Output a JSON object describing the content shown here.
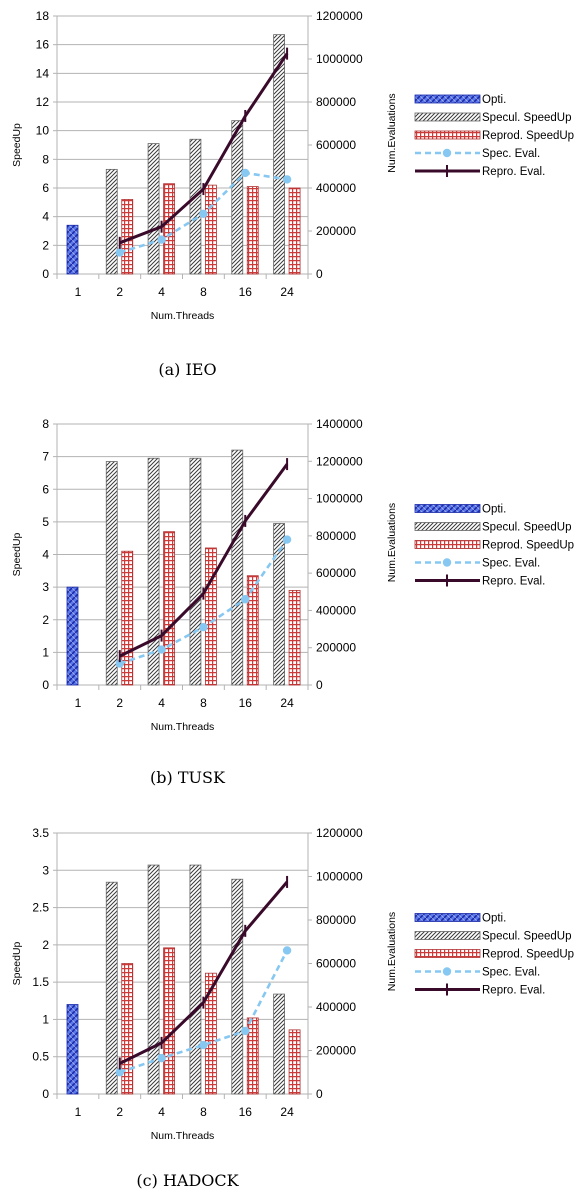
{
  "charts": [
    {
      "caption": "(a) IEO",
      "chart_data": {
        "type": "bar",
        "categories": [
          "1",
          "2",
          "4",
          "8",
          "16",
          "24"
        ],
        "xlabel": "Num.Threads",
        "ylabel": "SpeedUp",
        "y2label": "Num.Evaluations",
        "ylim": [
          0,
          18
        ],
        "yticks": [
          0,
          2,
          4,
          6,
          8,
          10,
          12,
          14,
          16,
          18
        ],
        "y2lim": [
          0,
          1200000
        ],
        "y2ticks": [
          0,
          200000,
          400000,
          600000,
          800000,
          1000000,
          1200000
        ],
        "legend_position": "right",
        "bars": [
          {
            "name": "Opti.",
            "values": [
              3.4,
              null,
              null,
              null,
              null,
              null
            ],
            "color": "#3a55d8",
            "pattern": "blue-hatch"
          },
          {
            "name": "Specul. SpeedUp",
            "values": [
              null,
              7.3,
              9.1,
              9.4,
              10.7,
              16.7
            ],
            "color": "#444444",
            "pattern": "diagonal"
          },
          {
            "name": "Reprod. SpeedUp",
            "values": [
              null,
              5.2,
              6.3,
              6.2,
              6.1,
              6.0
            ],
            "color": "#cc3a3a",
            "pattern": "grid"
          }
        ],
        "lines": [
          {
            "name": "Spec. Eval.",
            "axis": "right",
            "values": [
              null,
              100000,
              160000,
              280000,
              470000,
              440000
            ],
            "color": "#86c8f2",
            "style": "dashed"
          },
          {
            "name": "Repro. Eval.",
            "axis": "right",
            "values": [
              null,
              145000,
              220000,
              395000,
              735000,
              1025000
            ],
            "color": "#3a0a2a",
            "style": "solid"
          }
        ]
      }
    },
    {
      "caption": "(b) TUSK",
      "chart_data": {
        "type": "bar",
        "categories": [
          "1",
          "2",
          "4",
          "8",
          "16",
          "24"
        ],
        "xlabel": "Num.Threads",
        "ylabel": "SpeedUp",
        "y2label": "Num.Evaluations",
        "ylim": [
          0,
          8
        ],
        "yticks": [
          0,
          1,
          2,
          3,
          4,
          5,
          6,
          7,
          8
        ],
        "y2lim": [
          0,
          1400000
        ],
        "y2ticks": [
          0,
          200000,
          400000,
          600000,
          800000,
          1000000,
          1200000,
          1400000
        ],
        "legend_position": "right",
        "bars": [
          {
            "name": "Opti.",
            "values": [
              3.0,
              null,
              null,
              null,
              null,
              null
            ],
            "color": "#3a55d8",
            "pattern": "blue-hatch"
          },
          {
            "name": "Specul. SpeedUp",
            "values": [
              null,
              6.85,
              6.95,
              6.95,
              7.2,
              4.95
            ],
            "color": "#444444",
            "pattern": "diagonal"
          },
          {
            "name": "Reprod. SpeedUp",
            "values": [
              null,
              4.1,
              4.7,
              4.2,
              3.35,
              2.9
            ],
            "color": "#cc3a3a",
            "pattern": "grid"
          }
        ],
        "lines": [
          {
            "name": "Spec. Eval.",
            "axis": "right",
            "values": [
              null,
              115000,
              190000,
              310000,
              460000,
              780000
            ],
            "color": "#86c8f2",
            "style": "dashed"
          },
          {
            "name": "Repro. Eval.",
            "axis": "right",
            "values": [
              null,
              155000,
              265000,
              490000,
              880000,
              1185000
            ],
            "color": "#3a0a2a",
            "style": "solid"
          }
        ]
      }
    },
    {
      "caption": "(c) HADOCK",
      "chart_data": {
        "type": "bar",
        "categories": [
          "1",
          "2",
          "4",
          "8",
          "16",
          "24"
        ],
        "xlabel": "Num.Threads",
        "ylabel": "SpeedUp",
        "y2label": "Num.Evaluations",
        "ylim": [
          0,
          3.5
        ],
        "yticks": [
          0,
          0.5,
          1,
          1.5,
          2,
          2.5,
          3,
          3.5
        ],
        "y2lim": [
          0,
          1200000
        ],
        "y2ticks": [
          0,
          200000,
          400000,
          600000,
          800000,
          1000000,
          1200000
        ],
        "legend_position": "right",
        "bars": [
          {
            "name": "Opti.",
            "values": [
              1.2,
              null,
              null,
              null,
              null,
              null
            ],
            "color": "#3a55d8",
            "pattern": "blue-hatch"
          },
          {
            "name": "Specul. SpeedUp",
            "values": [
              null,
              2.84,
              3.07,
              3.07,
              2.88,
              1.34
            ],
            "color": "#444444",
            "pattern": "diagonal"
          },
          {
            "name": "Reprod. SpeedUp",
            "values": [
              null,
              1.75,
              1.96,
              1.62,
              1.02,
              0.86
            ],
            "color": "#cc3a3a",
            "pattern": "grid"
          }
        ],
        "lines": [
          {
            "name": "Spec. Eval.",
            "axis": "right",
            "values": [
              null,
              100000,
              165000,
              225000,
              290000,
              660000
            ],
            "color": "#86c8f2",
            "style": "dashed"
          },
          {
            "name": "Repro. Eval.",
            "axis": "right",
            "values": [
              null,
              140000,
              235000,
              420000,
              750000,
              975000
            ],
            "color": "#3a0a2a",
            "style": "solid"
          }
        ]
      }
    }
  ]
}
